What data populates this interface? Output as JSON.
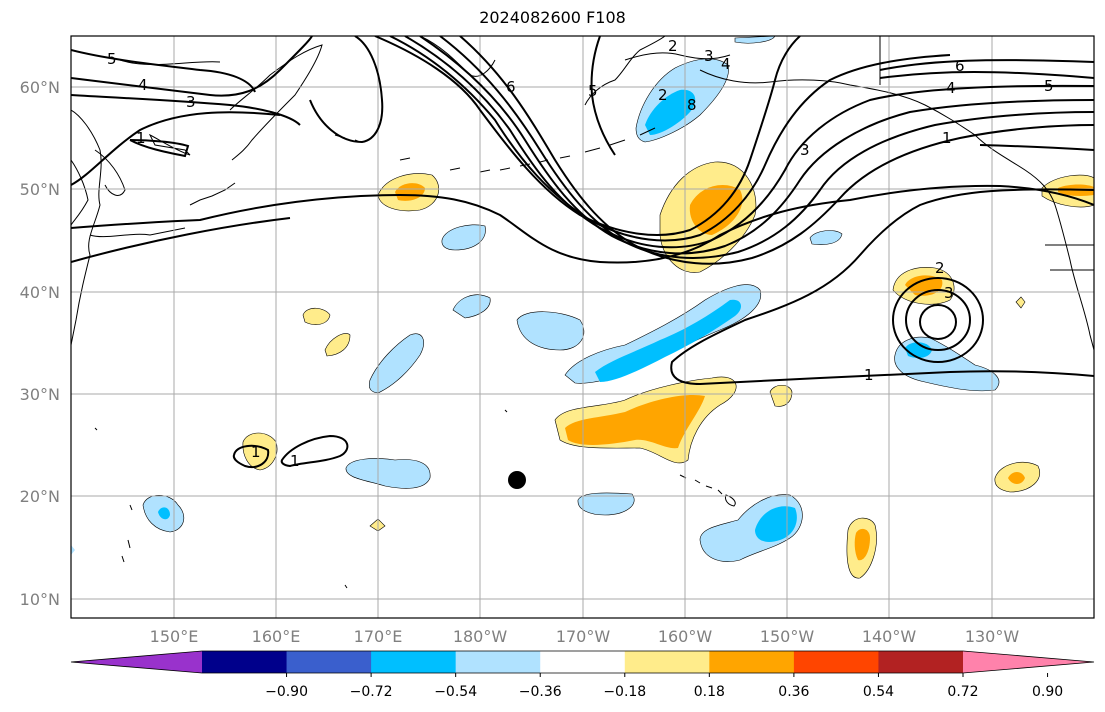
{
  "title": "2024082600 F108",
  "lat_labels": [
    "60°N",
    "50°N",
    "40°N",
    "30°N",
    "20°N",
    "10°N"
  ],
  "lon_labels": [
    "150°E",
    "160°E",
    "170°E",
    "180°W",
    "170°W",
    "160°W",
    "150°W",
    "140°W",
    "130°W"
  ],
  "colorbar": {
    "colors": [
      "#9932cc",
      "#00008b",
      "#3a5fcd",
      "#00bfff",
      "#b0e2ff",
      "#ffffff",
      "#ffec8b",
      "#ffa500",
      "#ff4500",
      "#b22222",
      "#ff82ab"
    ],
    "ticks": [
      "−0.90",
      "−0.72",
      "−0.54",
      "−0.36",
      "−0.18",
      "0.18",
      "0.36",
      "0.54",
      "0.72",
      "0.90"
    ]
  },
  "contour_labels": [
    "5",
    "4",
    "3",
    "1",
    "2",
    "3",
    "4",
    "6",
    "5",
    "2",
    "8",
    "6",
    "3",
    "4",
    "5",
    "1",
    "3",
    "2",
    "1",
    "1",
    "1"
  ],
  "marker": "storm-position-dot"
}
